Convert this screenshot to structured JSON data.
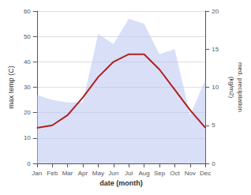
{
  "chart_data": {
    "type": "line",
    "xlabel": "date (month)",
    "ylabel": "max temp (C)",
    "y2label": "med. precipitation\n(kg/m2)",
    "categories": [
      "Jan",
      "Feb",
      "Mar",
      "Apr",
      "May",
      "Jun",
      "Jul",
      "Aug",
      "Sep",
      "Oct",
      "Nov",
      "Dec"
    ],
    "series": [
      {
        "type": "area",
        "color": "#b8c4f0",
        "values": [
          27,
          25,
          24,
          24,
          51,
          47,
          57,
          55,
          43,
          45,
          19,
          33
        ]
      },
      {
        "type": "line",
        "color": "#b02020",
        "values": [
          14,
          15,
          19,
          26,
          34,
          40,
          43,
          43,
          37,
          29,
          21,
          14
        ]
      }
    ],
    "ylim": [
      0,
      60
    ],
    "yticks": [
      0,
      10,
      20,
      30,
      40,
      50,
      60
    ],
    "y2lim": [
      0,
      20
    ],
    "y2ticks": [
      0,
      5,
      10,
      15,
      20
    ],
    "grid": true
  }
}
